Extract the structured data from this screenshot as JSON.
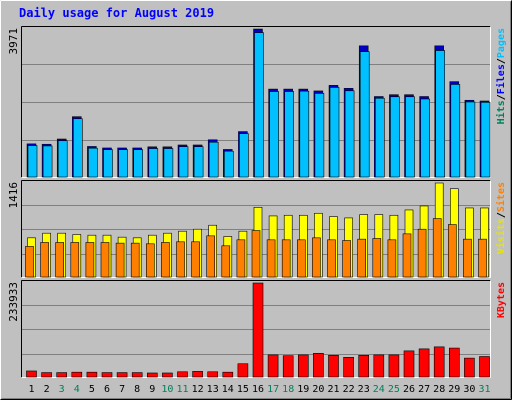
{
  "chart_data": {
    "type": "bar",
    "title": "Daily usage for August 2019",
    "categories": [
      "1",
      "2",
      "3",
      "4",
      "5",
      "6",
      "7",
      "8",
      "9",
      "10",
      "11",
      "12",
      "13",
      "14",
      "15",
      "16",
      "17",
      "18",
      "19",
      "20",
      "21",
      "22",
      "23",
      "24",
      "25",
      "26",
      "27",
      "28",
      "29",
      "30",
      "31"
    ],
    "weekend_days": [
      "3",
      "4",
      "10",
      "11",
      "17",
      "18",
      "24",
      "25",
      "31"
    ],
    "panels": [
      {
        "id": "top",
        "max_label": "3971",
        "ylim": [
          0,
          3971
        ],
        "legend": [
          {
            "text": "Hits",
            "color": "#00805c"
          },
          {
            "text": "/",
            "color": "#000000"
          },
          {
            "text": "Files",
            "color": "#0000ff"
          },
          {
            "text": "/",
            "color": "#000000"
          },
          {
            "text": "Pages",
            "color": "#00c0ff"
          }
        ],
        "series": [
          {
            "name": "Hits",
            "color": "#00805c",
            "values": [
              890,
              880,
              1020,
              1620,
              820,
              780,
              780,
              780,
              810,
              810,
              860,
              860,
              1000,
              740,
              1220,
              3971,
              2360,
              2360,
              2360,
              2310,
              2460,
              2380,
              3520,
              2160,
              2210,
              2210,
              2160,
              3520,
              2560,
              2060,
              2040
            ]
          },
          {
            "name": "Files",
            "color": "#0000ff",
            "values": [
              890,
              880,
              1020,
              1620,
              820,
              780,
              780,
              780,
              810,
              810,
              860,
              860,
              1000,
              740,
              1220,
              3971,
              2360,
              2360,
              2360,
              2310,
              2460,
              2380,
              3520,
              2160,
              2210,
              2210,
              2160,
              3520,
              2560,
              2060,
              2040
            ]
          },
          {
            "name": "Pages",
            "color": "#00c0ff",
            "values": [
              870,
              860,
              1000,
              1590,
              800,
              760,
              760,
              760,
              790,
              790,
              840,
              840,
              960,
              720,
              1190,
              3900,
              2320,
              2320,
              2330,
              2270,
              2430,
              2340,
              3390,
              2140,
              2180,
              2180,
              2120,
              3420,
              2510,
              2040,
              2030
            ]
          }
        ]
      },
      {
        "id": "middle",
        "max_label": "1416",
        "ylim": [
          0,
          1416
        ],
        "legend": [
          {
            "text": "Visits",
            "color": "#e6e600"
          },
          {
            "text": "/",
            "color": "#000000"
          },
          {
            "text": "Sites",
            "color": "#ff8000"
          }
        ],
        "series": [
          {
            "name": "Visits",
            "color": "#ffff00",
            "values": [
              590,
              660,
              660,
              640,
              630,
              630,
              600,
              590,
              630,
              660,
              690,
              720,
              780,
              610,
              690,
              1050,
              920,
              930,
              930,
              960,
              910,
              890,
              940,
              940,
              930,
              1010,
              1070,
              1416,
              1330,
              1040,
              1040
            ]
          },
          {
            "name": "Sites",
            "color": "#ff8000",
            "values": [
              460,
              520,
              520,
              520,
              520,
              520,
              510,
              510,
              500,
              520,
              530,
              530,
              620,
              470,
              560,
              700,
              560,
              560,
              560,
              590,
              560,
              550,
              570,
              580,
              560,
              650,
              720,
              880,
              790,
              570,
              570
            ]
          }
        ]
      },
      {
        "id": "bottom",
        "max_label": "233933",
        "ylim": [
          0,
          233933
        ],
        "legend": [
          {
            "text": "KBytes",
            "color": "#ff0000"
          }
        ],
        "series": [
          {
            "name": "KBytes",
            "color": "#ff0000",
            "values": [
              15000,
              11000,
              11000,
              12000,
              12000,
              11000,
              11000,
              11000,
              10000,
              10000,
              13000,
              14000,
              13000,
              12000,
              33000,
              233933,
              55000,
              53000,
              55000,
              59000,
              54000,
              49000,
              54000,
              55000,
              55000,
              65000,
              70000,
              75000,
              72000,
              47000,
              51000
            ]
          }
        ]
      }
    ]
  }
}
